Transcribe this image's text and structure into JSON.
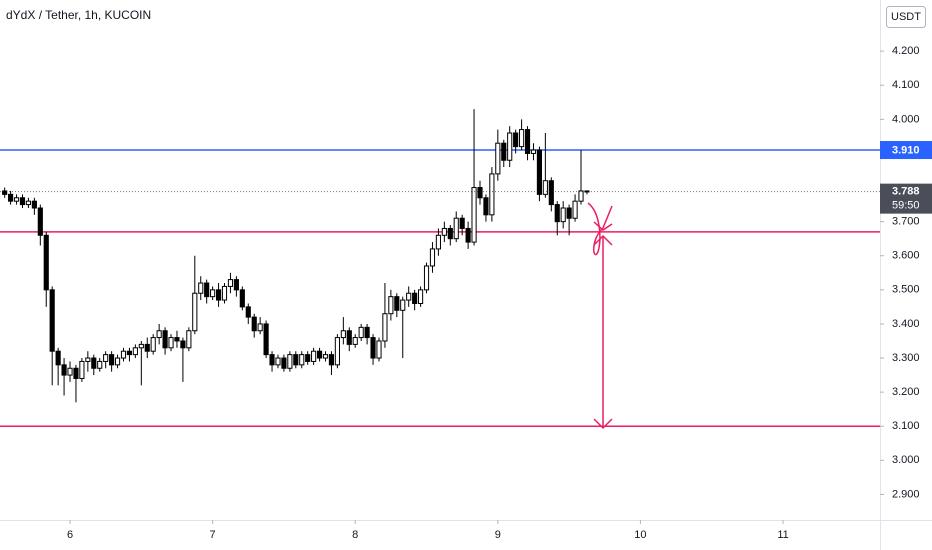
{
  "chart_data": {
    "type": "candlestick",
    "title": "dYdX / Tether, 1h, KUCOIN",
    "currency": "USDT",
    "xlim": [
      5.509,
      11.68
    ],
    "xticks": [
      6,
      7,
      8,
      9,
      10,
      11
    ],
    "ylim": [
      2.825,
      4.35
    ],
    "yticks": [
      {
        "value": 4.2,
        "label": "4.200"
      },
      {
        "value": 4.1,
        "label": "4.100"
      },
      {
        "value": 4.0,
        "label": "4.000"
      },
      {
        "value": 3.7,
        "label": "3.700"
      },
      {
        "value": 3.6,
        "label": "3.600"
      },
      {
        "value": 3.5,
        "label": "3.500"
      },
      {
        "value": 3.4,
        "label": "3.400"
      },
      {
        "value": 3.3,
        "label": "3.300"
      },
      {
        "value": 3.2,
        "label": "3.200"
      },
      {
        "value": 3.1,
        "label": "3.100"
      },
      {
        "value": 3.0,
        "label": "3.000"
      },
      {
        "value": 2.9,
        "label": "2.900"
      }
    ],
    "up_color": "#ffffff",
    "down_color": "#000000",
    "wick_color": "#000000",
    "x": [
      5.5417,
      5.5833,
      5.625,
      5.6667,
      5.7083,
      5.75,
      5.7917,
      5.8333,
      5.875,
      5.9167,
      5.9583,
      6.0,
      6.0417,
      6.0833,
      6.125,
      6.1667,
      6.2083,
      6.25,
      6.2917,
      6.3333,
      6.375,
      6.4167,
      6.4583,
      6.5,
      6.5417,
      6.5833,
      6.625,
      6.6667,
      6.7083,
      6.75,
      6.7917,
      6.8333,
      6.875,
      6.9167,
      6.9583,
      7.0,
      7.0417,
      7.0833,
      7.125,
      7.1667,
      7.2083,
      7.25,
      7.2917,
      7.3333,
      7.375,
      7.4167,
      7.4583,
      7.5,
      7.5417,
      7.5833,
      7.625,
      7.6667,
      7.7083,
      7.75,
      7.7917,
      7.8333,
      7.875,
      7.9167,
      7.9583,
      8.0,
      8.0417,
      8.0833,
      8.125,
      8.1667,
      8.2083,
      8.25,
      8.2917,
      8.3333,
      8.375,
      8.4167,
      8.4583,
      8.5,
      8.5417,
      8.5833,
      8.625,
      8.6667,
      8.7083,
      8.75,
      8.7917,
      8.8333,
      8.875,
      8.9167,
      8.9583,
      9.0,
      9.0417,
      9.0833,
      9.125,
      9.1667,
      9.2083,
      9.25,
      9.2917,
      9.3333,
      9.375,
      9.4167,
      9.4583,
      9.5,
      9.5417,
      9.5833,
      9.625
    ],
    "open": [
      3.79,
      3.78,
      3.76,
      3.77,
      3.75,
      3.76,
      3.74,
      3.66,
      3.5,
      3.32,
      3.28,
      3.25,
      3.27,
      3.24,
      3.29,
      3.3,
      3.27,
      3.29,
      3.31,
      3.28,
      3.3,
      3.32,
      3.31,
      3.33,
      3.34,
      3.32,
      3.36,
      3.38,
      3.33,
      3.36,
      3.35,
      3.33,
      3.38,
      3.49,
      3.52,
      3.48,
      3.5,
      3.47,
      3.51,
      3.53,
      3.5,
      3.45,
      3.42,
      3.38,
      3.4,
      3.31,
      3.28,
      3.3,
      3.27,
      3.31,
      3.28,
      3.31,
      3.29,
      3.32,
      3.3,
      3.31,
      3.28,
      3.36,
      3.38,
      3.34,
      3.36,
      3.39,
      3.36,
      3.3,
      3.35,
      3.43,
      3.48,
      3.44,
      3.47,
      3.49,
      3.46,
      3.5,
      3.57,
      3.62,
      3.66,
      3.68,
      3.65,
      3.71,
      3.68,
      3.64,
      3.8,
      3.77,
      3.72,
      3.84,
      3.93,
      3.88,
      3.96,
      3.92,
      3.97,
      3.9,
      3.91,
      3.78,
      3.82,
      3.75,
      3.7,
      3.74,
      3.71,
      3.76,
      3.79
    ],
    "high": [
      3.8,
      3.79,
      3.78,
      3.78,
      3.77,
      3.77,
      3.75,
      3.67,
      3.51,
      3.33,
      3.3,
      3.29,
      3.28,
      3.3,
      3.32,
      3.31,
      3.3,
      3.32,
      3.32,
      3.31,
      3.33,
      3.33,
      3.34,
      3.35,
      3.36,
      3.37,
      3.4,
      3.39,
      3.37,
      3.38,
      3.36,
      3.39,
      3.6,
      3.54,
      3.53,
      3.51,
      3.52,
      3.52,
      3.55,
      3.54,
      3.51,
      3.46,
      3.43,
      3.42,
      3.41,
      3.32,
      3.31,
      3.31,
      3.32,
      3.32,
      3.32,
      3.32,
      3.33,
      3.33,
      3.32,
      3.32,
      3.37,
      3.42,
      3.39,
      3.37,
      3.4,
      3.4,
      3.37,
      3.36,
      3.52,
      3.5,
      3.49,
      3.48,
      3.51,
      3.5,
      3.51,
      3.58,
      3.64,
      3.68,
      3.7,
      3.69,
      3.73,
      3.72,
      3.7,
      4.03,
      3.82,
      3.78,
      3.86,
      3.97,
      3.94,
      3.98,
      3.97,
      4.0,
      3.98,
      3.93,
      3.92,
      3.96,
      3.83,
      3.76,
      3.76,
      3.75,
      3.78,
      3.91,
      3.79
    ],
    "low": [
      3.77,
      3.75,
      3.75,
      3.74,
      3.74,
      3.72,
      3.63,
      3.45,
      3.22,
      3.22,
      3.19,
      3.23,
      3.17,
      3.23,
      3.26,
      3.25,
      3.26,
      3.27,
      3.26,
      3.27,
      3.29,
      3.29,
      3.3,
      3.22,
      3.3,
      3.31,
      3.34,
      3.31,
      3.32,
      3.33,
      3.23,
      3.32,
      3.37,
      3.47,
      3.46,
      3.47,
      3.45,
      3.46,
      3.49,
      3.48,
      3.44,
      3.4,
      3.36,
      3.37,
      3.3,
      3.26,
      3.27,
      3.26,
      3.26,
      3.27,
      3.27,
      3.28,
      3.28,
      3.29,
      3.29,
      3.25,
      3.27,
      3.34,
      3.32,
      3.33,
      3.35,
      3.34,
      3.28,
      3.29,
      3.33,
      3.41,
      3.42,
      3.3,
      3.45,
      3.44,
      3.45,
      3.49,
      3.55,
      3.6,
      3.64,
      3.63,
      3.64,
      3.66,
      3.62,
      3.63,
      3.75,
      3.7,
      3.7,
      3.82,
      3.86,
      3.86,
      3.9,
      3.91,
      3.88,
      3.88,
      3.76,
      3.77,
      3.73,
      3.66,
      3.68,
      3.66,
      3.7,
      3.75,
      3.78
    ],
    "close": [
      3.78,
      3.76,
      3.77,
      3.75,
      3.76,
      3.74,
      3.66,
      3.5,
      3.32,
      3.28,
      3.25,
      3.27,
      3.24,
      3.29,
      3.3,
      3.27,
      3.29,
      3.31,
      3.28,
      3.3,
      3.32,
      3.31,
      3.33,
      3.34,
      3.32,
      3.36,
      3.38,
      3.33,
      3.36,
      3.35,
      3.33,
      3.38,
      3.49,
      3.52,
      3.48,
      3.5,
      3.47,
      3.51,
      3.53,
      3.5,
      3.45,
      3.42,
      3.38,
      3.4,
      3.31,
      3.28,
      3.3,
      3.27,
      3.31,
      3.28,
      3.31,
      3.29,
      3.32,
      3.3,
      3.31,
      3.28,
      3.36,
      3.38,
      3.34,
      3.36,
      3.39,
      3.36,
      3.3,
      3.35,
      3.43,
      3.48,
      3.44,
      3.47,
      3.49,
      3.46,
      3.5,
      3.57,
      3.62,
      3.66,
      3.68,
      3.65,
      3.71,
      3.68,
      3.64,
      3.8,
      3.77,
      3.72,
      3.84,
      3.93,
      3.88,
      3.96,
      3.92,
      3.97,
      3.9,
      3.91,
      3.78,
      3.82,
      3.75,
      3.7,
      3.74,
      3.71,
      3.76,
      3.79,
      3.788
    ],
    "lines": [
      {
        "value": 3.91,
        "color": "#2962ff",
        "label": "3.910"
      },
      {
        "value": 3.67,
        "color": "#e91e63"
      },
      {
        "value": 3.1,
        "color": "#e91e63"
      }
    ],
    "last_price": {
      "value": 3.788,
      "label": "3.788",
      "countdown": "59:50",
      "color": "#131722"
    }
  }
}
